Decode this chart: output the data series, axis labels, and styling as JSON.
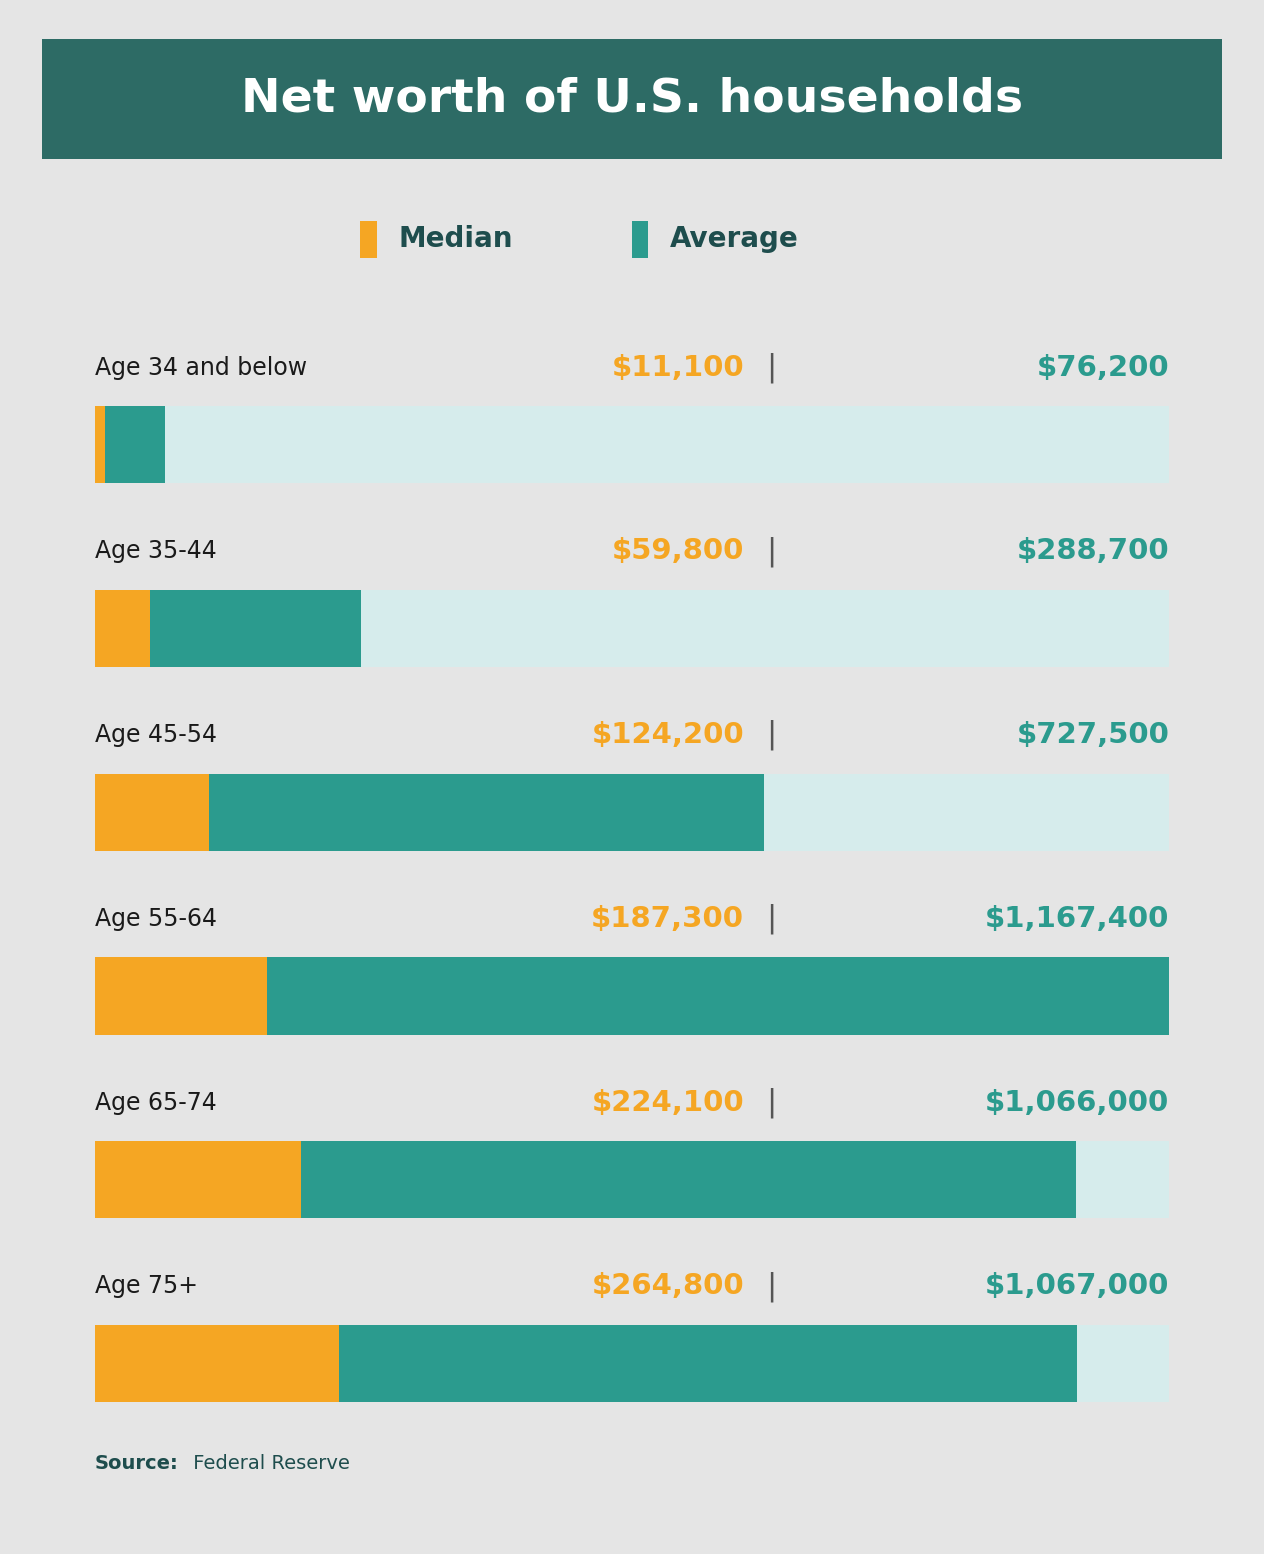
{
  "title": "Net worth of U.S. households",
  "title_bg_color": "#2d6b65",
  "title_text_color": "#ffffff",
  "card_bg_color": "#ffffff",
  "outer_bg_color": "#e5e5e5",
  "bar_bg_color": "#d6ecec",
  "categories": [
    "Age 34 and below",
    "Age 35-44",
    "Age 45-54",
    "Age 55-64",
    "Age 65-74",
    "Age 75+"
  ],
  "median_values": [
    11100,
    59800,
    124200,
    187300,
    224100,
    264800
  ],
  "average_values": [
    76200,
    288700,
    727500,
    1167400,
    1066000,
    1067000
  ],
  "median_labels": [
    "$11,100",
    "$59,800",
    "$124,200",
    "$187,300",
    "$224,100",
    "$264,800"
  ],
  "average_labels": [
    "$76,200",
    "$288,700",
    "$727,500",
    "$1,167,400",
    "$1,066,000",
    "$1,067,000"
  ],
  "max_scale": 1167400,
  "orange_color": "#f5a623",
  "teal_color": "#2b9b8e",
  "label_dark_color": "#1e4d4d",
  "cat_label_color": "#1a1a1a",
  "source_bold_color": "#1e4d4d",
  "source_normal_color": "#1e4d4d",
  "sep_color": "#555555"
}
